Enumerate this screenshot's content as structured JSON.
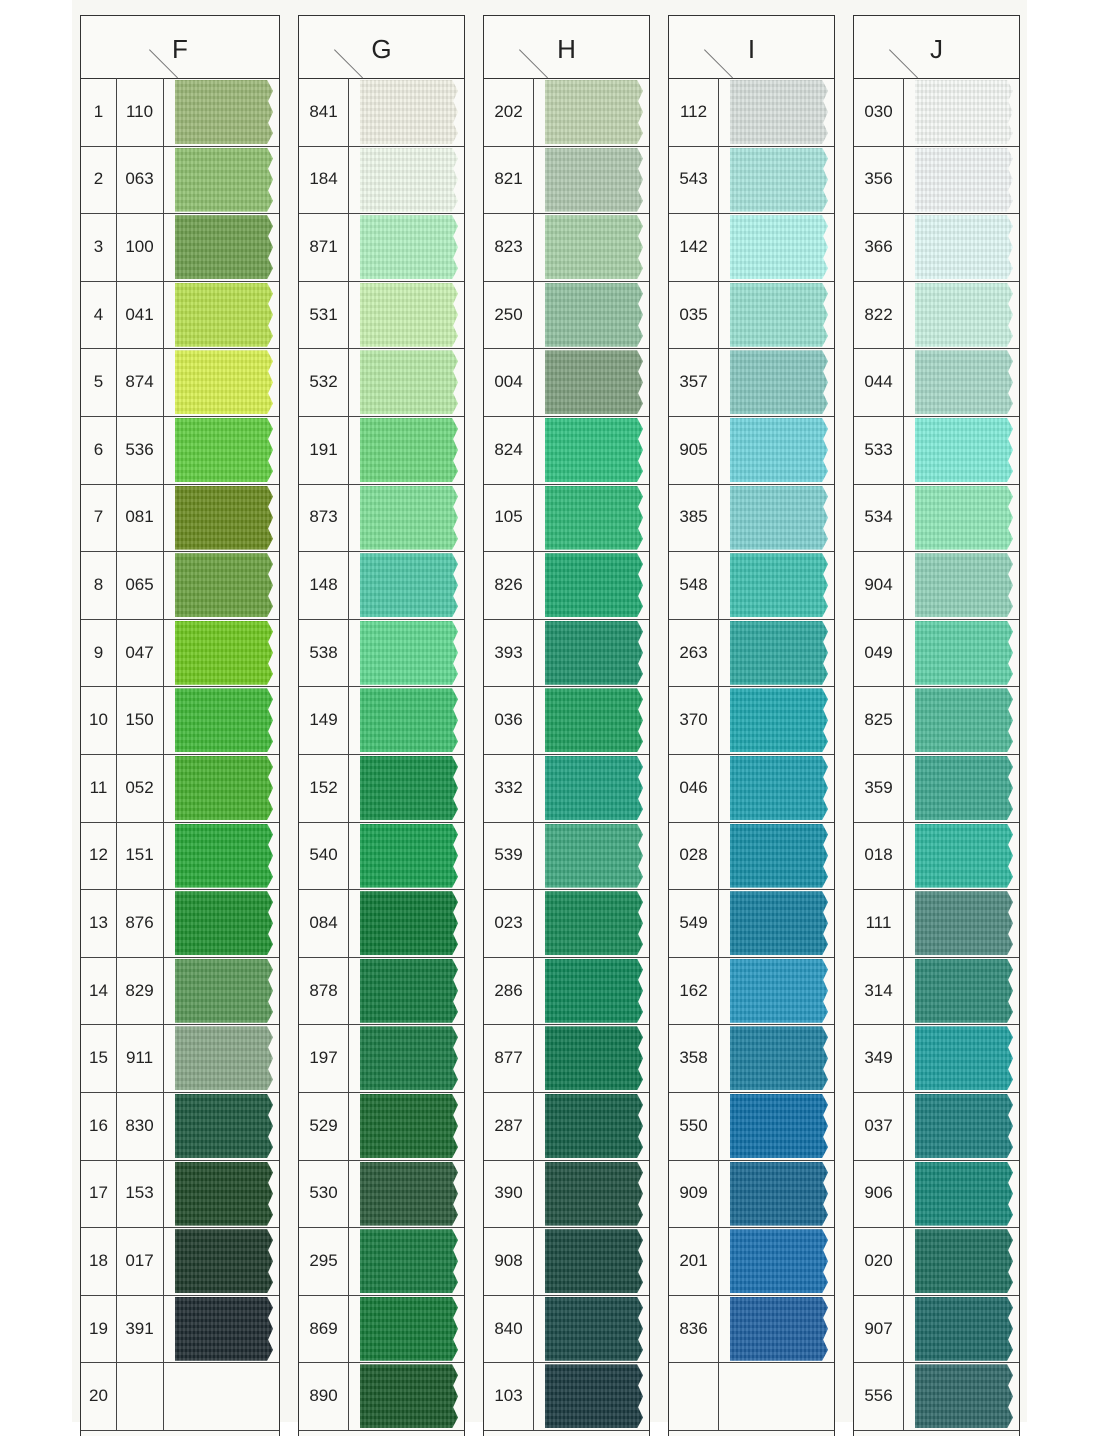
{
  "columns": [
    {
      "letter": "F",
      "indexed": true,
      "rows": [
        {
          "index": "1",
          "code": "110",
          "color": "#9cb878"
        },
        {
          "index": "2",
          "code": "063",
          "color": "#8fc070"
        },
        {
          "index": "3",
          "code": "100",
          "color": "#70a050"
        },
        {
          "index": "4",
          "code": "041",
          "color": "#b8e050"
        },
        {
          "index": "5",
          "code": "874",
          "color": "#d8f050"
        },
        {
          "index": "6",
          "code": "536",
          "color": "#60cc40"
        },
        {
          "index": "7",
          "code": "081",
          "color": "#6a8a20"
        },
        {
          "index": "8",
          "code": "065",
          "color": "#6aa040"
        },
        {
          "index": "9",
          "code": "047",
          "color": "#70c820"
        },
        {
          "index": "10",
          "code": "150",
          "color": "#40b838"
        },
        {
          "index": "11",
          "code": "052",
          "color": "#48b030"
        },
        {
          "index": "12",
          "code": "151",
          "color": "#28a838"
        },
        {
          "index": "13",
          "code": "876",
          "color": "#209030"
        },
        {
          "index": "14",
          "code": "829",
          "color": "#5a9858"
        },
        {
          "index": "15",
          "code": "911",
          "color": "#8aa88a"
        },
        {
          "index": "16",
          "code": "830",
          "color": "#1e5a40"
        },
        {
          "index": "17",
          "code": "153",
          "color": "#204a28"
        },
        {
          "index": "18",
          "code": "017",
          "color": "#1e3a2a"
        },
        {
          "index": "19",
          "code": "391",
          "color": "#1e2a30"
        },
        {
          "index": "20",
          "code": "",
          "color": ""
        }
      ]
    },
    {
      "letter": "G",
      "indexed": false,
      "rows": [
        {
          "code": "841",
          "color": "#f0f0e4"
        },
        {
          "code": "184",
          "color": "#eef8ea"
        },
        {
          "code": "871",
          "color": "#b0f0c0"
        },
        {
          "code": "531",
          "color": "#c8f0b0"
        },
        {
          "code": "532",
          "color": "#b8eaa8"
        },
        {
          "code": "191",
          "color": "#70d880"
        },
        {
          "code": "873",
          "color": "#80e098"
        },
        {
          "code": "148",
          "color": "#50c8a8"
        },
        {
          "code": "538",
          "color": "#60d890"
        },
        {
          "code": "149",
          "color": "#40c070"
        },
        {
          "code": "152",
          "color": "#18904a"
        },
        {
          "code": "540",
          "color": "#18a050"
        },
        {
          "code": "084",
          "color": "#107a38"
        },
        {
          "code": "878",
          "color": "#157a40"
        },
        {
          "code": "197",
          "color": "#1a7a45"
        },
        {
          "code": "529",
          "color": "#1a6a30"
        },
        {
          "code": "530",
          "color": "#2a5a3a"
        },
        {
          "code": "295",
          "color": "#187a40"
        },
        {
          "code": "869",
          "color": "#157a38"
        },
        {
          "code": "890",
          "color": "#1a5a2a"
        }
      ]
    },
    {
      "letter": "H",
      "indexed": false,
      "rows": [
        {
          "code": "202",
          "color": "#c0d4b0"
        },
        {
          "code": "821",
          "color": "#b0c8b0"
        },
        {
          "code": "823",
          "color": "#a8d0a8"
        },
        {
          "code": "250",
          "color": "#90c0a0"
        },
        {
          "code": "004",
          "color": "#80a080"
        },
        {
          "code": "824",
          "color": "#30c080"
        },
        {
          "code": "105",
          "color": "#30b878"
        },
        {
          "code": "826",
          "color": "#20a870"
        },
        {
          "code": "393",
          "color": "#20906a"
        },
        {
          "code": "036",
          "color": "#20a060"
        },
        {
          "code": "332",
          "color": "#20a080"
        },
        {
          "code": "539",
          "color": "#40a880"
        },
        {
          "code": "023",
          "color": "#188a58"
        },
        {
          "code": "286",
          "color": "#10885a"
        },
        {
          "code": "877",
          "color": "#107850"
        },
        {
          "code": "287",
          "color": "#156048"
        },
        {
          "code": "390",
          "color": "#205040"
        },
        {
          "code": "908",
          "color": "#1a4a40"
        },
        {
          "code": "840",
          "color": "#1a4a48"
        },
        {
          "code": "103",
          "color": "#1a3a40"
        }
      ]
    },
    {
      "letter": "I",
      "indexed": false,
      "rows": [
        {
          "code": "112",
          "color": "#d8e0dc"
        },
        {
          "code": "543",
          "color": "#a8e4dc"
        },
        {
          "code": "142",
          "color": "#b0f4ec"
        },
        {
          "code": "035",
          "color": "#98e0d0"
        },
        {
          "code": "357",
          "color": "#88c8c0"
        },
        {
          "code": "905",
          "color": "#70d4dc"
        },
        {
          "code": "385",
          "color": "#80d0d0"
        },
        {
          "code": "548",
          "color": "#40c0b0"
        },
        {
          "code": "263",
          "color": "#30a8a0"
        },
        {
          "code": "370",
          "color": "#20a8b0"
        },
        {
          "code": "046",
          "color": "#20a0b0"
        },
        {
          "code": "028",
          "color": "#1890a8"
        },
        {
          "code": "549",
          "color": "#1880a0"
        },
        {
          "code": "162",
          "color": "#2898c0"
        },
        {
          "code": "358",
          "color": "#2080a0"
        },
        {
          "code": "550",
          "color": "#1070a8"
        },
        {
          "code": "909",
          "color": "#1a6890"
        },
        {
          "code": "201",
          "color": "#1a70b0"
        },
        {
          "code": "836",
          "color": "#2060a0"
        },
        {
          "code": "",
          "color": ""
        }
      ]
    },
    {
      "letter": "J",
      "indexed": false,
      "rows": [
        {
          "code": "030",
          "color": "#f4f8f4"
        },
        {
          "code": "356",
          "color": "#f0f4f4"
        },
        {
          "code": "366",
          "color": "#e0f8f4"
        },
        {
          "code": "822",
          "color": "#c8f0e0"
        },
        {
          "code": "044",
          "color": "#a8d8c8"
        },
        {
          "code": "533",
          "color": "#80ecd8"
        },
        {
          "code": "534",
          "color": "#90e8b8"
        },
        {
          "code": "904",
          "color": "#90d0b8"
        },
        {
          "code": "049",
          "color": "#60d0a8"
        },
        {
          "code": "825",
          "color": "#50b898"
        },
        {
          "code": "359",
          "color": "#40a890"
        },
        {
          "code": "018",
          "color": "#30b8a0"
        },
        {
          "code": "111",
          "color": "#508a80"
        },
        {
          "code": "314",
          "color": "#308a78"
        },
        {
          "code": "349",
          "color": "#20a0a0"
        },
        {
          "code": "037",
          "color": "#208080"
        },
        {
          "code": "906",
          "color": "#18887a"
        },
        {
          "code": "020",
          "color": "#207060"
        },
        {
          "code": "907",
          "color": "#206a68"
        },
        {
          "code": "556",
          "color": "#306868"
        }
      ]
    }
  ]
}
